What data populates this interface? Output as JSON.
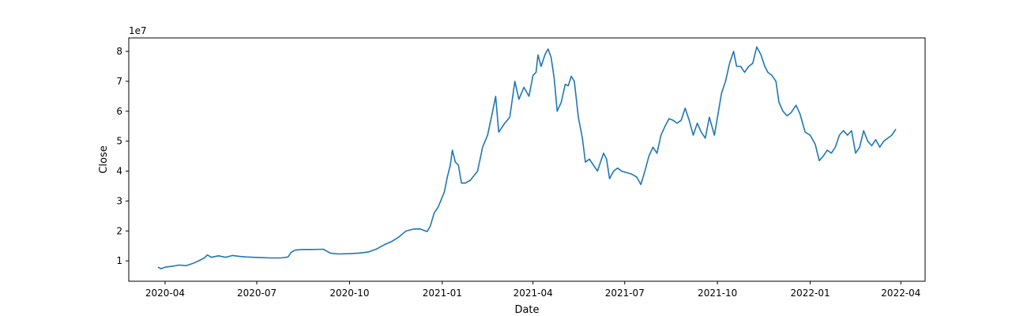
{
  "chart_data": {
    "type": "line",
    "xlabel": "Date",
    "ylabel": "Close",
    "y_offset_label": "1e7",
    "y_scale": 10000000,
    "xlim": [
      "2020-02-25",
      "2022-04-25"
    ],
    "ylim": [
      3200000,
      84500000
    ],
    "x_ticks": [
      "2020-04-01",
      "2020-07-01",
      "2020-10-01",
      "2021-01-01",
      "2021-04-01",
      "2021-07-01",
      "2021-10-01",
      "2022-01-01",
      "2022-04-01"
    ],
    "x_tick_labels": [
      "2020-04",
      "2020-07",
      "2020-10",
      "2021-01",
      "2021-04",
      "2021-07",
      "2021-10",
      "2022-01",
      "2022-04"
    ],
    "y_ticks": [
      10000000,
      20000000,
      30000000,
      40000000,
      50000000,
      60000000,
      70000000,
      80000000
    ],
    "y_tick_labels": [
      "1",
      "2",
      "3",
      "4",
      "5",
      "6",
      "7",
      "8"
    ],
    "grid": false,
    "series": [
      {
        "color": "#1f77b4",
        "points": [
          [
            "2020-03-25",
            7900000
          ],
          [
            "2020-03-28",
            7400000
          ],
          [
            "2020-04-01",
            7900000
          ],
          [
            "2020-04-08",
            8200000
          ],
          [
            "2020-04-15",
            8600000
          ],
          [
            "2020-04-22",
            8400000
          ],
          [
            "2020-04-29",
            9200000
          ],
          [
            "2020-05-06",
            10300000
          ],
          [
            "2020-05-10",
            11000000
          ],
          [
            "2020-05-13",
            12000000
          ],
          [
            "2020-05-17",
            11200000
          ],
          [
            "2020-05-24",
            11700000
          ],
          [
            "2020-05-31",
            11200000
          ],
          [
            "2020-06-07",
            11800000
          ],
          [
            "2020-06-14",
            11500000
          ],
          [
            "2020-06-21",
            11300000
          ],
          [
            "2020-06-28",
            11200000
          ],
          [
            "2020-07-05",
            11100000
          ],
          [
            "2020-07-15",
            11000000
          ],
          [
            "2020-07-25",
            11000000
          ],
          [
            "2020-08-01",
            11300000
          ],
          [
            "2020-08-04",
            12800000
          ],
          [
            "2020-08-08",
            13600000
          ],
          [
            "2020-08-15",
            13800000
          ],
          [
            "2020-08-25",
            13800000
          ],
          [
            "2020-09-05",
            13900000
          ],
          [
            "2020-09-12",
            12600000
          ],
          [
            "2020-09-20",
            12300000
          ],
          [
            "2020-10-01",
            12400000
          ],
          [
            "2020-10-10",
            12600000
          ],
          [
            "2020-10-20",
            13000000
          ],
          [
            "2020-10-28",
            14000000
          ],
          [
            "2020-11-05",
            15500000
          ],
          [
            "2020-11-12",
            16500000
          ],
          [
            "2020-11-19",
            18000000
          ],
          [
            "2020-11-26",
            20000000
          ],
          [
            "2020-12-03",
            20600000
          ],
          [
            "2020-12-10",
            20700000
          ],
          [
            "2020-12-17",
            19800000
          ],
          [
            "2020-12-20",
            21500000
          ],
          [
            "2020-12-24",
            26000000
          ],
          [
            "2020-12-28",
            28000000
          ],
          [
            "2021-01-03",
            33000000
          ],
          [
            "2021-01-06",
            38000000
          ],
          [
            "2021-01-09",
            42000000
          ],
          [
            "2021-01-11",
            47000000
          ],
          [
            "2021-01-14",
            43000000
          ],
          [
            "2021-01-17",
            42000000
          ],
          [
            "2021-01-20",
            36000000
          ],
          [
            "2021-01-24",
            36000000
          ],
          [
            "2021-01-29",
            37000000
          ],
          [
            "2021-02-05",
            40000000
          ],
          [
            "2021-02-10",
            48000000
          ],
          [
            "2021-02-15",
            52000000
          ],
          [
            "2021-02-20",
            60000000
          ],
          [
            "2021-02-23",
            65000000
          ],
          [
            "2021-02-26",
            53000000
          ],
          [
            "2021-03-04",
            56000000
          ],
          [
            "2021-03-09",
            58000000
          ],
          [
            "2021-03-14",
            70000000
          ],
          [
            "2021-03-18",
            64000000
          ],
          [
            "2021-03-23",
            68000000
          ],
          [
            "2021-03-28",
            65000000
          ],
          [
            "2021-04-01",
            72000000
          ],
          [
            "2021-04-04",
            73000000
          ],
          [
            "2021-04-06",
            78800000
          ],
          [
            "2021-04-09",
            75000000
          ],
          [
            "2021-04-13",
            79000000
          ],
          [
            "2021-04-16",
            80800000
          ],
          [
            "2021-04-19",
            78000000
          ],
          [
            "2021-04-22",
            71000000
          ],
          [
            "2021-04-25",
            60000000
          ],
          [
            "2021-04-29",
            63000000
          ],
          [
            "2021-05-03",
            69000000
          ],
          [
            "2021-05-06",
            68500000
          ],
          [
            "2021-05-09",
            71700000
          ],
          [
            "2021-05-12",
            70000000
          ],
          [
            "2021-05-16",
            58000000
          ],
          [
            "2021-05-20",
            51000000
          ],
          [
            "2021-05-23",
            43000000
          ],
          [
            "2021-05-27",
            44000000
          ],
          [
            "2021-05-31",
            42000000
          ],
          [
            "2021-06-04",
            40000000
          ],
          [
            "2021-06-07",
            43000000
          ],
          [
            "2021-06-10",
            46000000
          ],
          [
            "2021-06-13",
            44000000
          ],
          [
            "2021-06-16",
            37500000
          ],
          [
            "2021-06-20",
            40000000
          ],
          [
            "2021-06-24",
            41000000
          ],
          [
            "2021-06-28",
            40000000
          ],
          [
            "2021-07-03",
            39500000
          ],
          [
            "2021-07-08",
            39000000
          ],
          [
            "2021-07-13",
            38000000
          ],
          [
            "2021-07-17",
            35500000
          ],
          [
            "2021-07-21",
            40000000
          ],
          [
            "2021-07-25",
            45000000
          ],
          [
            "2021-07-29",
            48000000
          ],
          [
            "2021-08-02",
            46000000
          ],
          [
            "2021-08-06",
            52000000
          ],
          [
            "2021-08-10",
            55000000
          ],
          [
            "2021-08-14",
            57500000
          ],
          [
            "2021-08-18",
            57000000
          ],
          [
            "2021-08-22",
            56000000
          ],
          [
            "2021-08-26",
            57000000
          ],
          [
            "2021-08-30",
            61000000
          ],
          [
            "2021-09-03",
            57000000
          ],
          [
            "2021-09-07",
            52000000
          ],
          [
            "2021-09-11",
            56000000
          ],
          [
            "2021-09-15",
            53000000
          ],
          [
            "2021-09-19",
            51000000
          ],
          [
            "2021-09-23",
            58000000
          ],
          [
            "2021-09-28",
            52000000
          ],
          [
            "2021-10-01",
            58000000
          ],
          [
            "2021-10-05",
            66000000
          ],
          [
            "2021-10-09",
            70000000
          ],
          [
            "2021-10-13",
            76000000
          ],
          [
            "2021-10-17",
            80000000
          ],
          [
            "2021-10-20",
            75000000
          ],
          [
            "2021-10-24",
            75000000
          ],
          [
            "2021-10-28",
            73000000
          ],
          [
            "2021-11-01",
            75000000
          ],
          [
            "2021-11-05",
            76000000
          ],
          [
            "2021-11-09",
            81500000
          ],
          [
            "2021-11-13",
            79000000
          ],
          [
            "2021-11-17",
            75000000
          ],
          [
            "2021-11-20",
            73000000
          ],
          [
            "2021-11-24",
            72000000
          ],
          [
            "2021-11-28",
            70000000
          ],
          [
            "2021-12-01",
            63000000
          ],
          [
            "2021-12-05",
            60000000
          ],
          [
            "2021-12-09",
            58500000
          ],
          [
            "2021-12-13",
            59500000
          ],
          [
            "2021-12-18",
            62000000
          ],
          [
            "2021-12-22",
            59000000
          ],
          [
            "2021-12-27",
            53000000
          ],
          [
            "2022-01-01",
            52000000
          ],
          [
            "2022-01-06",
            49000000
          ],
          [
            "2022-01-10",
            43500000
          ],
          [
            "2022-01-14",
            45000000
          ],
          [
            "2022-01-18",
            47000000
          ],
          [
            "2022-01-22",
            46000000
          ],
          [
            "2022-01-26",
            48000000
          ],
          [
            "2022-01-30",
            52000000
          ],
          [
            "2022-02-03",
            53500000
          ],
          [
            "2022-02-07",
            52000000
          ],
          [
            "2022-02-11",
            53500000
          ],
          [
            "2022-02-15",
            46000000
          ],
          [
            "2022-02-19",
            48000000
          ],
          [
            "2022-02-23",
            53500000
          ],
          [
            "2022-02-27",
            50000000
          ],
          [
            "2022-03-03",
            48500000
          ],
          [
            "2022-03-07",
            50500000
          ],
          [
            "2022-03-11",
            48000000
          ],
          [
            "2022-03-15",
            50000000
          ],
          [
            "2022-03-19",
            51000000
          ],
          [
            "2022-03-23",
            52000000
          ],
          [
            "2022-03-27",
            54000000
          ]
        ]
      }
    ]
  }
}
